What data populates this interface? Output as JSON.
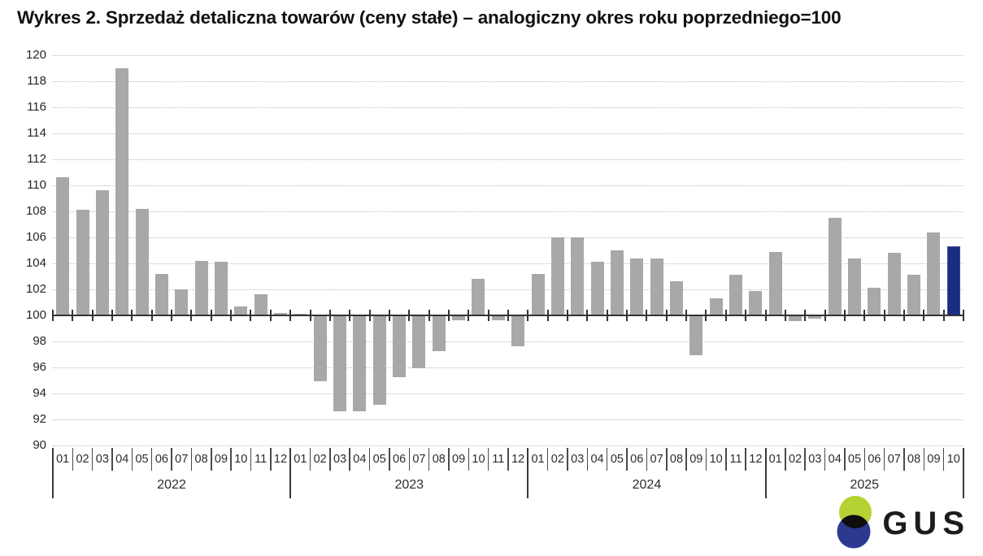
{
  "chart_data": {
    "type": "bar",
    "title": "Wykres 2. Sprzedaż detaliczna towarów (ceny stałe) – analogiczny okres roku poprzedniego=100",
    "ylabel": "",
    "xlabel": "",
    "ylim": [
      90,
      120
    ],
    "yticks": [
      90,
      92,
      94,
      96,
      98,
      100,
      102,
      104,
      106,
      108,
      110,
      112,
      114,
      116,
      118,
      120
    ],
    "baseline": 100,
    "grid": "horizontal-dotted",
    "legend": "none",
    "bar_color": "#a8a8a8",
    "highlight_bar_color": "#1b2d80",
    "highlight_note": "last bar (2025-10) shown in navy",
    "groups": [
      {
        "year": "2022",
        "months": [
          "01",
          "02",
          "03",
          "04",
          "05",
          "06",
          "07",
          "08",
          "09",
          "10",
          "11",
          "12"
        ],
        "values": [
          110.6,
          108.1,
          109.6,
          119.0,
          108.2,
          103.2,
          102.0,
          104.2,
          104.1,
          100.7,
          101.6,
          100.2
        ]
      },
      {
        "year": "2023",
        "months": [
          "01",
          "02",
          "03",
          "04",
          "05",
          "06",
          "07",
          "08",
          "09",
          "10",
          "11",
          "12"
        ],
        "values": [
          100.1,
          95.0,
          92.7,
          92.7,
          93.2,
          95.3,
          96.0,
          97.3,
          99.7,
          102.8,
          99.7,
          97.7
        ]
      },
      {
        "year": "2024",
        "months": [
          "01",
          "02",
          "03",
          "04",
          "05",
          "06",
          "07",
          "08",
          "09",
          "10",
          "11",
          "12"
        ],
        "values": [
          103.2,
          106.0,
          106.0,
          104.1,
          105.0,
          104.4,
          104.4,
          102.6,
          97.0,
          101.3,
          103.1,
          101.9
        ]
      },
      {
        "year": "2025",
        "months": [
          "01",
          "02",
          "03",
          "04",
          "05",
          "06",
          "07",
          "08",
          "09",
          "10"
        ],
        "values": [
          104.9,
          99.6,
          99.8,
          107.5,
          104.4,
          102.1,
          104.8,
          103.1,
          106.4,
          105.3
        ]
      }
    ]
  },
  "logo": {
    "text": "GUS",
    "green": "#b5d233",
    "blue": "#2b3a8f",
    "overlap": "#0d0d0d"
  }
}
